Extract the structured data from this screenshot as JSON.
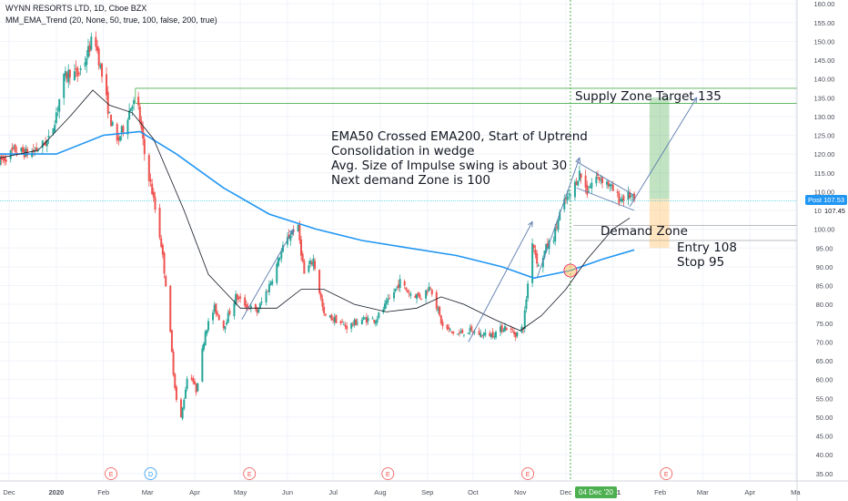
{
  "header": {
    "title": "WYNN RESORTS LTD, 1D, Cboe BZX",
    "indicator": "MM_EMA_Trend (20, None, 50, true, 100, false, 200, true)"
  },
  "annotations": {
    "main_lines": [
      "EMA50 Crossed EMA200, Start of Uptrend",
      "Consolidation in wedge",
      "Avg. Size of Impulse swing is about 30",
      "Next demand Zone is 100"
    ],
    "supply": "Supply Zone  Target 135",
    "demand": "Demand Zone",
    "entry_lines": [
      "Entry 108",
      "Stop 95"
    ]
  },
  "badges": {
    "post_label": "Post",
    "post_price": "107.53",
    "last_price": "107.45",
    "date_cursor": "04 Dec '20"
  },
  "event_markers": [
    "E",
    "D",
    "E",
    "E",
    "E",
    "E"
  ],
  "colors": {
    "up_candle": "#26a69a",
    "down_candle": "#ef5350",
    "ema_fast": "#131722",
    "ema_slow": "#2196f3",
    "post_badge": "#2196f3",
    "date_badge": "#4caf50",
    "zone_lines": "#4caf50",
    "profit_fill": "#4caf50",
    "stop_fill": "#ffb74d",
    "event_marker": "#ef5350",
    "dividend_marker": "#2196f3",
    "cursor": "#4caf50"
  },
  "chart_data": {
    "type": "candlestick",
    "y_ticks": [
      "35.00",
      "40.00",
      "45.00",
      "50.00",
      "55.00",
      "60.00",
      "65.00",
      "70.00",
      "75.00",
      "80.00",
      "85.00",
      "90.00",
      "95.00",
      "100.00",
      "105.00",
      "110.00",
      "115.00",
      "120.00",
      "125.00",
      "130.00",
      "135.00",
      "140.00",
      "145.00",
      "150.00",
      "155.00",
      "160.00"
    ],
    "x_ticks": [
      "Dec",
      "2020",
      "Feb",
      "Mar",
      "Apr",
      "May",
      "Jun",
      "Jul",
      "Aug",
      "Sep",
      "Oct",
      "Nov",
      "Dec",
      "2021",
      "Feb",
      "Mar",
      "Apr",
      "Ma"
    ],
    "ylim": [
      33,
      161
    ],
    "xlim": [
      "2019-11-25",
      "2021-05-02"
    ],
    "scale": "linear",
    "grid": true,
    "ema_fast_name": "EMA50",
    "ema_slow_name": "EMA200",
    "ohlc_anchors": [
      [
        "2019-11-25",
        118
      ],
      [
        "2019-12-05",
        121
      ],
      [
        "2019-12-15",
        120
      ],
      [
        "2019-12-28",
        124
      ],
      [
        "2020-01-06",
        140
      ],
      [
        "2020-01-10",
        142
      ],
      [
        "2020-01-15",
        141
      ],
      [
        "2020-01-20",
        145
      ],
      [
        "2020-01-26",
        152
      ],
      [
        "2020-01-30",
        143
      ],
      [
        "2020-02-05",
        130
      ],
      [
        "2020-02-10",
        123
      ],
      [
        "2020-02-15",
        128
      ],
      [
        "2020-02-20",
        134
      ],
      [
        "2020-02-24",
        132
      ],
      [
        "2020-02-28",
        120
      ],
      [
        "2020-03-04",
        110
      ],
      [
        "2020-03-10",
        96
      ],
      [
        "2020-03-14",
        82
      ],
      [
        "2020-03-18",
        62
      ],
      [
        "2020-03-22",
        47
      ],
      [
        "2020-03-28",
        63
      ],
      [
        "2020-04-02",
        57
      ],
      [
        "2020-04-08",
        73
      ],
      [
        "2020-04-14",
        79
      ],
      [
        "2020-04-20",
        74
      ],
      [
        "2020-04-28",
        82
      ],
      [
        "2020-05-04",
        80
      ],
      [
        "2020-05-12",
        78
      ],
      [
        "2020-05-20",
        85
      ],
      [
        "2020-05-30",
        96
      ],
      [
        "2020-06-05",
        100
      ],
      [
        "2020-06-08",
        100
      ],
      [
        "2020-06-12",
        88
      ],
      [
        "2020-06-18",
        92
      ],
      [
        "2020-06-25",
        77
      ],
      [
        "2020-07-02",
        76
      ],
      [
        "2020-07-10",
        74
      ],
      [
        "2020-07-20",
        76
      ],
      [
        "2020-07-29",
        76
      ],
      [
        "2020-08-05",
        80
      ],
      [
        "2020-08-14",
        86
      ],
      [
        "2020-08-20",
        83
      ],
      [
        "2020-08-28",
        82
      ],
      [
        "2020-09-03",
        85
      ],
      [
        "2020-09-11",
        74
      ],
      [
        "2020-09-20",
        72
      ],
      [
        "2020-09-28",
        73
      ],
      [
        "2020-10-06",
        72
      ],
      [
        "2020-10-14",
        72
      ],
      [
        "2020-10-22",
        74
      ],
      [
        "2020-10-29",
        72
      ],
      [
        "2020-11-03",
        74
      ],
      [
        "2020-11-09",
        97
      ],
      [
        "2020-11-13",
        90
      ],
      [
        "2020-11-18",
        95
      ],
      [
        "2020-11-23",
        98
      ],
      [
        "2020-11-27",
        104
      ],
      [
        "2020-12-01",
        108
      ],
      [
        "2020-12-04",
        109
      ],
      [
        "2020-12-10",
        115
      ],
      [
        "2020-12-15",
        110
      ],
      [
        "2020-12-20",
        114
      ],
      [
        "2020-12-27",
        113
      ],
      [
        "2021-01-05",
        108
      ],
      [
        "2021-01-12",
        109
      ],
      [
        "2021-01-15",
        107.5
      ]
    ],
    "ema_fast_anchors": [
      [
        "2019-11-25",
        119
      ],
      [
        "2019-12-20",
        121
      ],
      [
        "2020-01-10",
        130
      ],
      [
        "2020-01-25",
        137
      ],
      [
        "2020-02-05",
        133
      ],
      [
        "2020-02-20",
        131
      ],
      [
        "2020-03-05",
        124
      ],
      [
        "2020-03-25",
        105
      ],
      [
        "2020-04-10",
        88
      ],
      [
        "2020-05-01",
        79
      ],
      [
        "2020-05-25",
        79
      ],
      [
        "2020-06-10",
        84
      ],
      [
        "2020-06-25",
        84
      ],
      [
        "2020-07-15",
        80
      ],
      [
        "2020-08-05",
        78
      ],
      [
        "2020-08-25",
        79
      ],
      [
        "2020-09-10",
        82
      ],
      [
        "2020-09-25",
        80
      ],
      [
        "2020-10-15",
        76
      ],
      [
        "2020-11-01",
        73
      ],
      [
        "2020-11-15",
        77
      ],
      [
        "2020-12-01",
        84
      ],
      [
        "2020-12-15",
        92
      ],
      [
        "2021-01-01",
        100
      ],
      [
        "2021-01-12",
        103
      ]
    ],
    "ema_slow_anchors": [
      [
        "2019-11-25",
        120
      ],
      [
        "2020-01-01",
        120
      ],
      [
        "2020-02-01",
        125
      ],
      [
        "2020-02-25",
        126
      ],
      [
        "2020-03-20",
        120
      ],
      [
        "2020-04-20",
        111
      ],
      [
        "2020-05-20",
        104
      ],
      [
        "2020-06-20",
        100
      ],
      [
        "2020-07-20",
        97
      ],
      [
        "2020-08-20",
        95
      ],
      [
        "2020-09-20",
        93
      ],
      [
        "2020-10-20",
        90
      ],
      [
        "2020-11-10",
        87
      ],
      [
        "2020-12-04",
        89
      ],
      [
        "2020-12-25",
        92
      ],
      [
        "2021-01-15",
        94.5
      ]
    ],
    "drawn_lines": {
      "impulse_swing_1": [
        [
          "2020-05-02",
          76
        ],
        [
          "2020-06-05",
          100
        ]
      ],
      "impulse_swing_2": [
        [
          "2020-09-28",
          70
        ],
        [
          "2020-11-09",
          102
        ]
      ],
      "impulse_swing_3": [
        [
          "2020-11-12",
          87
        ],
        [
          "2020-12-10",
          119
        ]
      ],
      "target_arrow": [
        [
          "2021-01-12",
          106
        ],
        [
          "2021-02-25",
          135
        ]
      ],
      "wedge_upper": [
        [
          "2020-12-08",
          118
        ],
        [
          "2021-01-15",
          109
        ]
      ],
      "wedge_lower": [
        [
          "2020-12-08",
          111
        ],
        [
          "2021-01-15",
          105
        ]
      ],
      "supply_zone_top": 137.5,
      "supply_zone_bottom": 133.5,
      "demand_zone_top": 101,
      "demand_zone_bottom": 97,
      "entry": 108,
      "target": 135,
      "stop": 95,
      "post_price": 107.53
    },
    "crossover_point": [
      "2020-12-04",
      89
    ]
  }
}
